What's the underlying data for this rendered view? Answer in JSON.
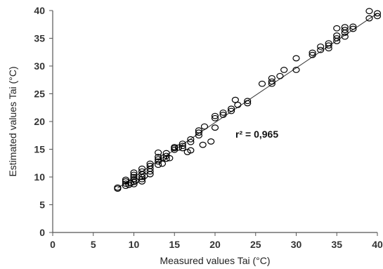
{
  "chart_data": {
    "type": "scatter",
    "title": "",
    "xlabel": "Measured values Tai (°C)",
    "ylabel": "Estimated values Tai (°C)",
    "xlim": [
      0,
      40
    ],
    "ylim": [
      0,
      40
    ],
    "x_ticks": [
      "0",
      "5",
      "10",
      "15",
      "20",
      "25",
      "30",
      "35",
      "40"
    ],
    "y_ticks": [
      "0",
      "5",
      "10",
      "15",
      "20",
      "25",
      "30",
      "35",
      "40"
    ],
    "grid": false,
    "legend": "none",
    "marker": "open-circle",
    "marker_color": "#000000",
    "annotation": "r² = 0,965",
    "fit_line": {
      "x": [
        8,
        40
      ],
      "y": [
        8,
        39.5
      ]
    },
    "points": [
      [
        8,
        7.9
      ],
      [
        8,
        8.1
      ],
      [
        9,
        8.4
      ],
      [
        9,
        8.8
      ],
      [
        9,
        9.2
      ],
      [
        9,
        9.5
      ],
      [
        9.4,
        8.6
      ],
      [
        9.6,
        8.9
      ],
      [
        10,
        8.7
      ],
      [
        10,
        9.1
      ],
      [
        10,
        9.6
      ],
      [
        10,
        10
      ],
      [
        10,
        10.4
      ],
      [
        10,
        10.8
      ],
      [
        10.2,
        9.3
      ],
      [
        11,
        9.2
      ],
      [
        11,
        9.6
      ],
      [
        11,
        10
      ],
      [
        11,
        10.5
      ],
      [
        11,
        11
      ],
      [
        11,
        11.5
      ],
      [
        11.3,
        10.2
      ],
      [
        12,
        10.5
      ],
      [
        12,
        11
      ],
      [
        12,
        11.5
      ],
      [
        12,
        12
      ],
      [
        12,
        12.4
      ],
      [
        13,
        12.2
      ],
      [
        13,
        12.8
      ],
      [
        13,
        13.2
      ],
      [
        13,
        13.6
      ],
      [
        13,
        14.4
      ],
      [
        13.5,
        12.4
      ],
      [
        13.6,
        13.5
      ],
      [
        14,
        13.3
      ],
      [
        14,
        13.8
      ],
      [
        14,
        14.3
      ],
      [
        14.4,
        13.4
      ],
      [
        15,
        14.9
      ],
      [
        15,
        15.2
      ],
      [
        15,
        15.4
      ],
      [
        15.5,
        15.3
      ],
      [
        16,
        15.2
      ],
      [
        16,
        15.6
      ],
      [
        16,
        16
      ],
      [
        16.6,
        14.5
      ],
      [
        17,
        14.8
      ],
      [
        17,
        16.3
      ],
      [
        17,
        16.8
      ],
      [
        18,
        17.5
      ],
      [
        18,
        18
      ],
      [
        18,
        18.4
      ],
      [
        18.5,
        15.8
      ],
      [
        18.7,
        19.1
      ],
      [
        19.5,
        16.4
      ],
      [
        20,
        18.9
      ],
      [
        20,
        20.6
      ],
      [
        20,
        21
      ],
      [
        21,
        21.2
      ],
      [
        21,
        21.6
      ],
      [
        22,
        21.9
      ],
      [
        22,
        22.3
      ],
      [
        22.5,
        23.9
      ],
      [
        22.8,
        23
      ],
      [
        24,
        23.3
      ],
      [
        24,
        23.7
      ],
      [
        25.8,
        26.8
      ],
      [
        27,
        26.8
      ],
      [
        27,
        27.2
      ],
      [
        27,
        27.8
      ],
      [
        28,
        28.2
      ],
      [
        28.5,
        29.3
      ],
      [
        30,
        29.3
      ],
      [
        30,
        31.4
      ],
      [
        32,
        32
      ],
      [
        32,
        32.4
      ],
      [
        33,
        32.9
      ],
      [
        33,
        33.5
      ],
      [
        34,
        33.2
      ],
      [
        34,
        33.7
      ],
      [
        34,
        34.1
      ],
      [
        35,
        34.5
      ],
      [
        35,
        35
      ],
      [
        35,
        35.5
      ],
      [
        35,
        36.8
      ],
      [
        36,
        35.3
      ],
      [
        36,
        36
      ],
      [
        36,
        36.5
      ],
      [
        36,
        37
      ],
      [
        37,
        36.7
      ],
      [
        37,
        37.1
      ],
      [
        39,
        38.6
      ],
      [
        39,
        39.9
      ],
      [
        40,
        39
      ],
      [
        40,
        39.5
      ]
    ]
  }
}
